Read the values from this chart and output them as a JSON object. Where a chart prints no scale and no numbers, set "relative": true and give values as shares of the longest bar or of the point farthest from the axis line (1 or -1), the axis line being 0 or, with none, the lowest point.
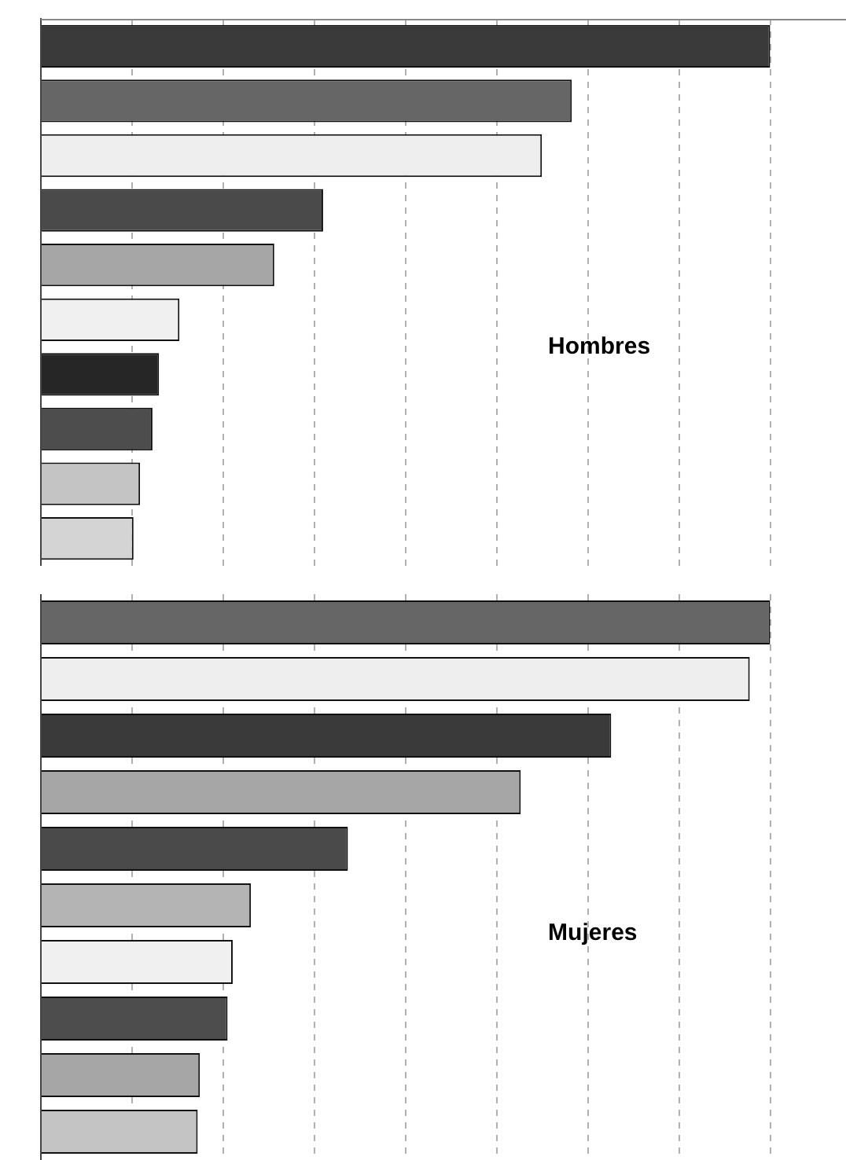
{
  "chart_data": [
    {
      "type": "bar",
      "orientation": "horizontal",
      "relative": true,
      "grid": "x",
      "categories": [
        null,
        null,
        null,
        null,
        null,
        null,
        null,
        null,
        null,
        null
      ],
      "values": [
        1,
        0.728,
        0.687,
        0.387,
        0.32,
        0.19,
        0.162,
        0.153,
        0.136,
        0.127
      ],
      "legend": false,
      "colors": [
        "#3a3a3a",
        "#666666",
        "#eeeeee",
        "#4a4a4a",
        "#a6a6a6",
        "#f0f0f0",
        "#262626",
        "#4d4d4d",
        "#c4c4c4",
        "#d4d4d4"
      ],
      "annotations": [
        "Hombres"
      ]
    },
    {
      "type": "bar",
      "orientation": "horizontal",
      "relative": true,
      "grid": "x",
      "categories": [
        null,
        null,
        null,
        null,
        null,
        null,
        null,
        null,
        null,
        null
      ],
      "values": [
        1,
        0.972,
        0.782,
        0.658,
        0.421,
        0.288,
        0.263,
        0.256,
        0.218,
        0.215
      ],
      "legend": false,
      "colors": [
        "#666666",
        "#eeeeee",
        "#3a3a3a",
        "#a6a6a6",
        "#4a4a4a",
        "#b4b4b4",
        "#f0f0f0",
        "#4d4d4d",
        "#a6a6a6",
        "#c4c4c4"
      ],
      "annotations": [
        "Mujeres"
      ]
    }
  ]
}
